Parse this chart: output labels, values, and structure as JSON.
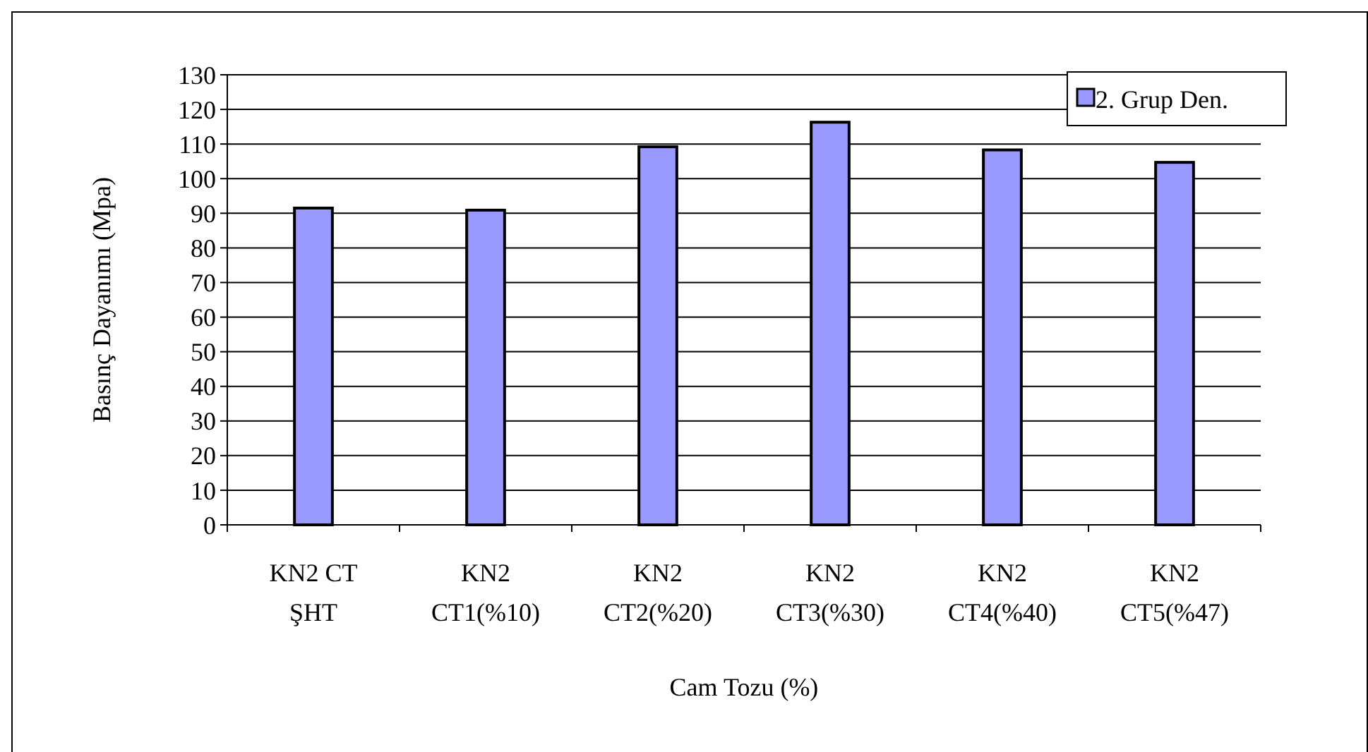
{
  "chart_data": {
    "type": "bar",
    "xlabel": "Cam Tozu (%)",
    "ylabel": "Basınç Dayanımı (Mpa)",
    "categories": [
      "KN2 CT\nŞHT",
      "KN2\nCT1(%10)",
      "KN2\nCT2(%20)",
      "KN2\nCT3(%30)",
      "KN2\nCT4(%40)",
      "KN2\nCT5(%47)"
    ],
    "series": [
      {
        "name": "2. Grup Den.",
        "color": "#9999ff",
        "values": [
          91.5,
          90.9,
          109.2,
          116.3,
          108.3,
          104.7
        ]
      }
    ],
    "ylim": [
      0,
      130
    ],
    "yticks": [
      0,
      10,
      20,
      30,
      40,
      50,
      60,
      70,
      80,
      90,
      100,
      110,
      120,
      130
    ],
    "grid": "y",
    "legend": "top right"
  }
}
